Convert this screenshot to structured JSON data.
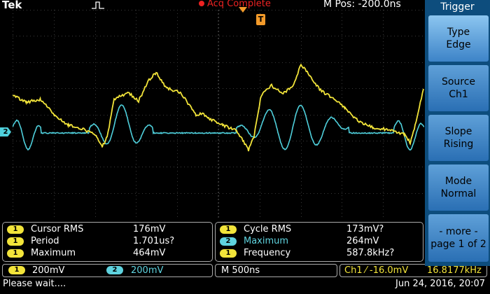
{
  "top_bar": {
    "brand": "Tek",
    "acquisition_status": "Acq Complete",
    "m_pos": "M Pos: -200.0ns"
  },
  "screen": {
    "trigger_marker": "T",
    "ch2_marker": "2",
    "trace_colors": {
      "ch1": "#f2e43a",
      "ch2": "#4fd0dc"
    }
  },
  "measurements_left": [
    {
      "channel": "1",
      "name": "Cursor RMS",
      "value": "176mV"
    },
    {
      "channel": "1",
      "name": "Period",
      "value": "1.701us?"
    },
    {
      "channel": "1",
      "name": "Maximum",
      "value": "464mV"
    }
  ],
  "measurements_right": [
    {
      "channel": "1",
      "name": "Cycle RMS",
      "value": "173mV?"
    },
    {
      "channel": "2",
      "name": "Maximum",
      "value": "264mV"
    },
    {
      "channel": "1",
      "name": "Frequency",
      "value": "587.8kHz?"
    }
  ],
  "status_bar": {
    "ch1_channel": "1",
    "ch1_scale": "200mV",
    "ch2_channel": "2",
    "ch2_scale": "200mV",
    "timebase": "M 500ns",
    "trigger_info": "Ch1 ⁄ -16.0mV",
    "trigger_freq": "16.8177kHz",
    "message": "Please wait....",
    "date": "Jun 24, 2016, 20:07"
  },
  "menu": {
    "title": "Trigger",
    "buttons": [
      {
        "line1": "Type",
        "line2": "Edge"
      },
      {
        "line1": "Source",
        "line2": "Ch1"
      },
      {
        "line1": "Slope",
        "line2": "Rising"
      },
      {
        "line1": "Mode",
        "line2": "Normal"
      },
      {
        "line1": "- more -",
        "line2": "page 1 of 2"
      }
    ]
  }
}
